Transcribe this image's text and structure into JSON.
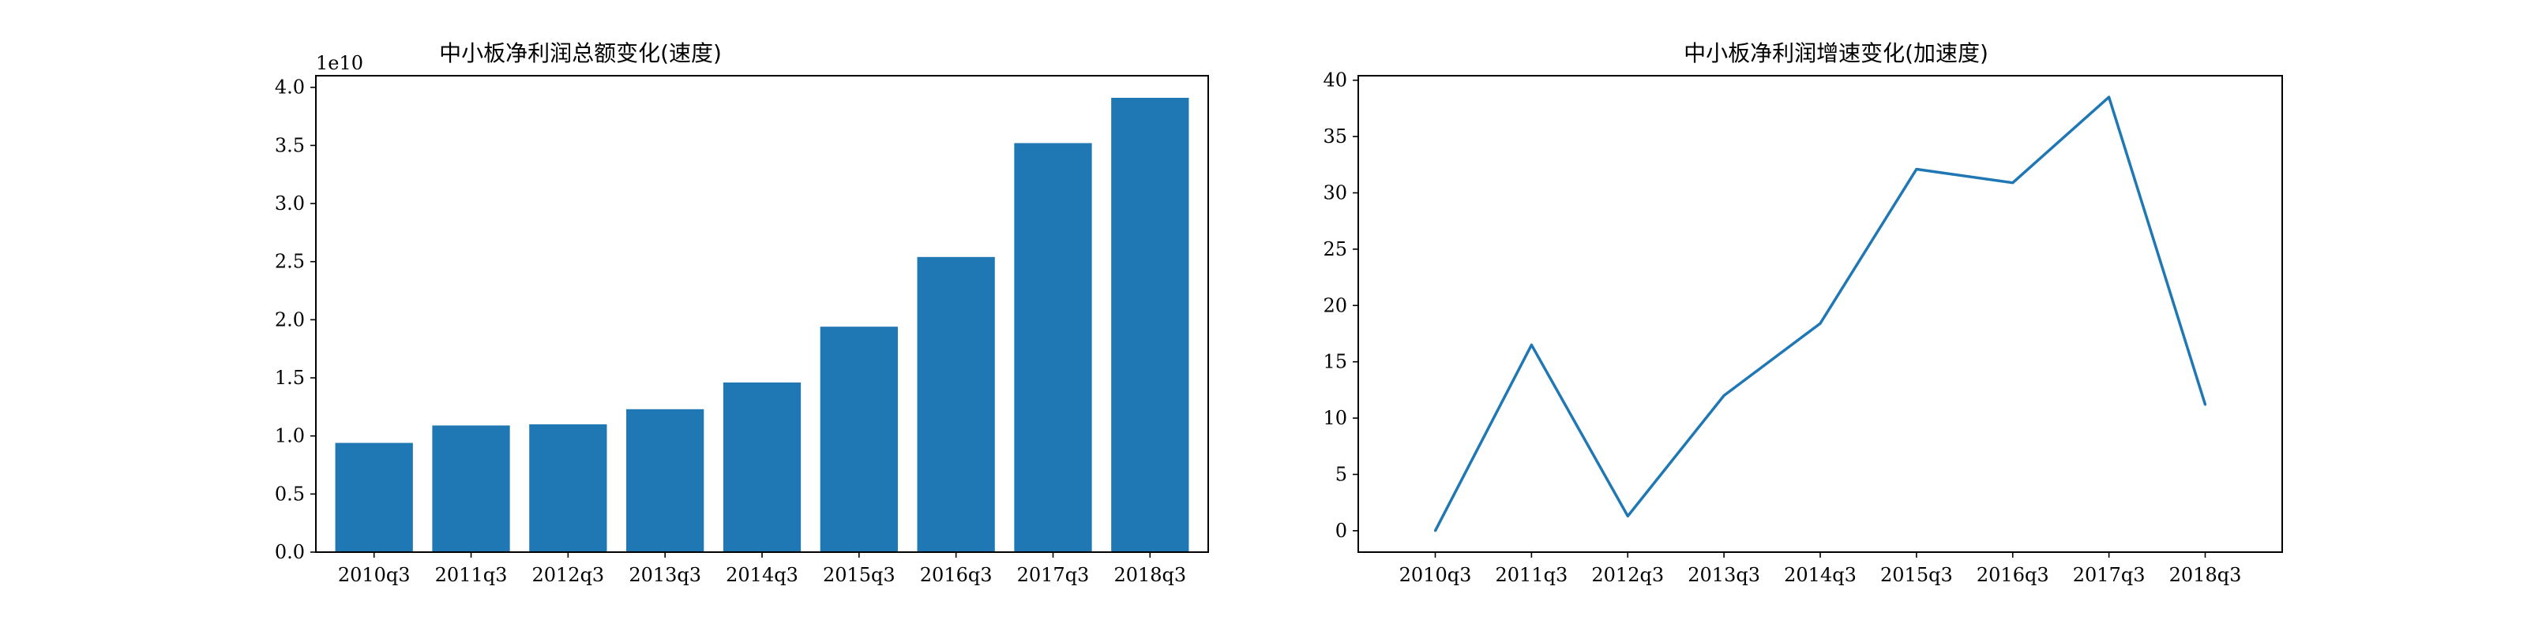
{
  "chart_data": [
    {
      "type": "bar",
      "title": "中小板净利润总额变化(速度)",
      "xlabel": "",
      "ylabel": "",
      "categories": [
        "2010q3",
        "2011q3",
        "2012q3",
        "2013q3",
        "2014q3",
        "2015q3",
        "2016q3",
        "2017q3",
        "2018q3"
      ],
      "values": [
        9400000000.0,
        10900000000.0,
        11000000000.0,
        12300000000.0,
        14600000000.0,
        19400000000.0,
        25400000000.0,
        35200000000.0,
        39100000000.0
      ],
      "ylim": [
        0,
        41000000000
      ],
      "y_scale_offset": "1e10",
      "y_ticks": [
        0,
        5000000000,
        10000000000,
        15000000000,
        20000000000,
        25000000000,
        30000000000,
        35000000000,
        40000000000
      ],
      "y_tick_labels": [
        "0.0",
        "0.5",
        "1.0",
        "1.5",
        "2.0",
        "2.5",
        "3.0",
        "3.5",
        "4.0"
      ],
      "color": "#1f77b4",
      "grid": false,
      "legend": "none"
    },
    {
      "type": "line",
      "title": "中小板净利润增速变化(加速度)",
      "xlabel": "",
      "ylabel": "",
      "categories": [
        "2010q3",
        "2011q3",
        "2012q3",
        "2013q3",
        "2014q3",
        "2015q3",
        "2016q3",
        "2017q3",
        "2018q3"
      ],
      "values": [
        0.0,
        16.5,
        1.3,
        12.0,
        18.4,
        32.1,
        30.9,
        38.5,
        11.2
      ],
      "ylim": [
        -1.9,
        40.4
      ],
      "y_ticks": [
        0,
        5,
        10,
        15,
        20,
        25,
        30,
        35,
        40
      ],
      "y_tick_labels": [
        "0",
        "5",
        "10",
        "15",
        "20",
        "25",
        "30",
        "35",
        "40"
      ],
      "color": "#1f77b4",
      "grid": false,
      "legend": "none"
    }
  ]
}
